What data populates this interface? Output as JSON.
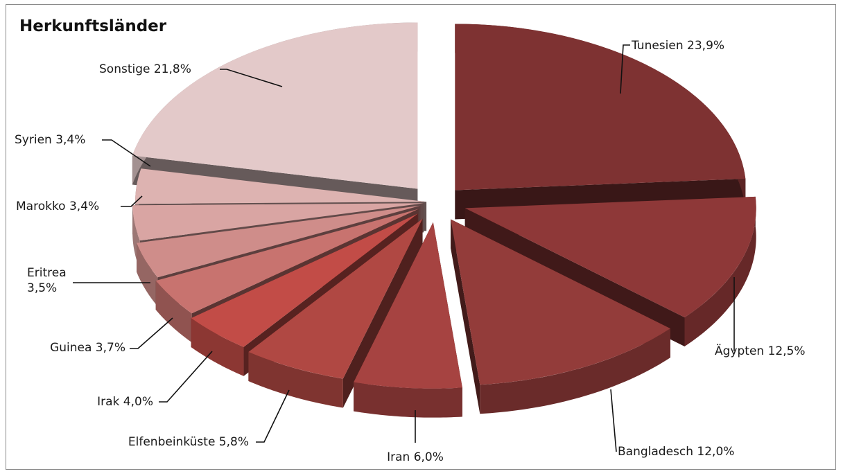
{
  "chart_data": {
    "type": "pie",
    "title": "Herkunftsländer",
    "style": "3d-exploded",
    "slices": [
      {
        "label": "Tunesien 23,9%",
        "value": 23.9,
        "color": "#7e3232"
      },
      {
        "label": "Ägypten 12,5%",
        "value": 12.5,
        "color": "#8e3838"
      },
      {
        "label": "Bangladesch 12,0%",
        "value": 12.0,
        "color": "#933c3a"
      },
      {
        "label": "Iran 6,0%",
        "value": 6.0,
        "color": "#a64341"
      },
      {
        "label": "Elfenbeinküste 5,8%",
        "value": 5.8,
        "color": "#b04843"
      },
      {
        "label": "Irak 4,0%",
        "value": 4.0,
        "color": "#c24c47"
      },
      {
        "label": "Guinea 3,7%",
        "value": 3.7,
        "color": "#c8736f"
      },
      {
        "label": "Eritrea\n3,5%",
        "value": 3.5,
        "color": "#cf8d8a"
      },
      {
        "label": "Marokko 3,4%",
        "value": 3.4,
        "color": "#d9a5a3"
      },
      {
        "label": "Syrien 3,4%",
        "value": 3.4,
        "color": "#ddb3b1"
      },
      {
        "label": "Sonstige 21,8%",
        "value": 21.8,
        "color": "#e3c9c9"
      }
    ]
  }
}
